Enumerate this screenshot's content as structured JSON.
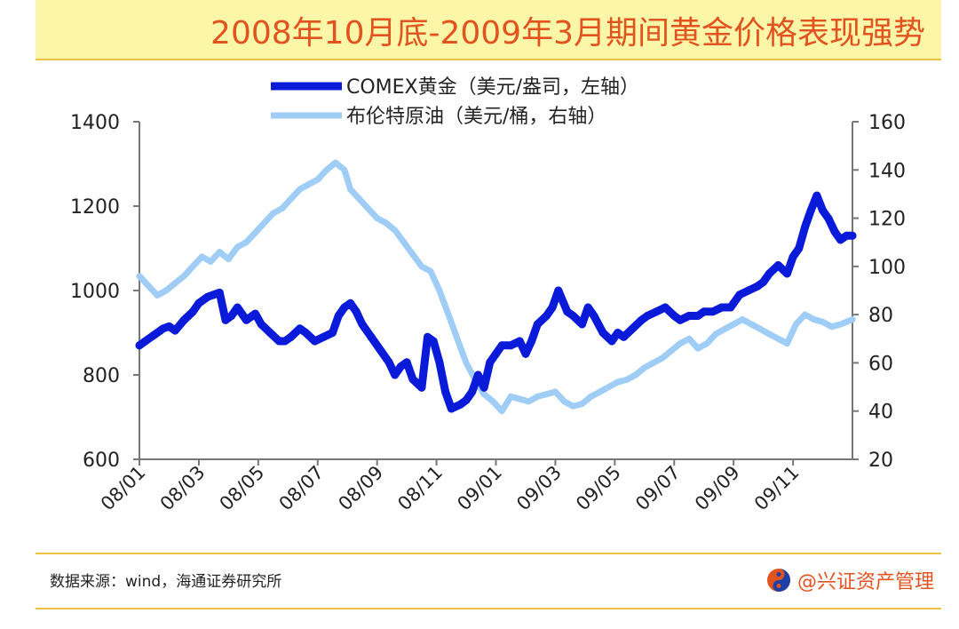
{
  "title": "2008年10月底-2009年3月期间黄金价格表现强势",
  "source": "数据来源：wind，海通证券研究所",
  "watermark": "@兴证资产管理",
  "colors": {
    "gold": "#0a1ad9",
    "oil": "#9fcdf6",
    "title": "#e2541f",
    "band": "#fbf6a8",
    "rule": "#f0c040"
  },
  "chart_data": {
    "type": "line",
    "legend": [
      "COMEX黄金（美元/盎司，左轴）",
      "布伦特原油（美元/桶，右轴）"
    ],
    "legend_position": "top-center",
    "x_tick_labels": [
      "08/01",
      "08/03",
      "08/05",
      "08/07",
      "08/09",
      "08/11",
      "09/01",
      "09/03",
      "09/05",
      "09/07",
      "09/09",
      "09/11"
    ],
    "x_range_months": [
      0,
      24
    ],
    "y_left": {
      "min": 600,
      "max": 1400,
      "ticks": [
        600,
        800,
        1000,
        1200,
        1400
      ]
    },
    "y_right": {
      "min": 20,
      "max": 160,
      "ticks": [
        20,
        40,
        60,
        80,
        100,
        120,
        140,
        160
      ]
    },
    "grid": false,
    "series": [
      {
        "name": "COMEX黄金（美元/盎司，左轴）",
        "axis": "left",
        "x": [
          0,
          0.2,
          0.5,
          0.8,
          1,
          1.2,
          1.5,
          1.8,
          2,
          2.3,
          2.5,
          2.7,
          2.9,
          3.1,
          3.3,
          3.6,
          3.9,
          4.1,
          4.4,
          4.7,
          4.9,
          5.1,
          5.4,
          5.6,
          5.9,
          6.2,
          6.5,
          6.7,
          6.9,
          7.1,
          7.3,
          7.5,
          7.8,
          8.1,
          8.4,
          8.6,
          8.8,
          9,
          9.2,
          9.5,
          9.7,
          9.9,
          10.1,
          10.3,
          10.5,
          10.8,
          11,
          11.2,
          11.4,
          11.6,
          11.8,
          12,
          12.2,
          12.5,
          12.8,
          13,
          13.2,
          13.4,
          13.7,
          13.9,
          14.1,
          14.4,
          14.6,
          14.9,
          15.1,
          15.3,
          15.6,
          15.9,
          16.1,
          16.3,
          16.6,
          16.9,
          17.1,
          17.4,
          17.7,
          18,
          18.2,
          18.5,
          18.8,
          19,
          19.3,
          19.6,
          19.9,
          20.2,
          20.5,
          20.8,
          21,
          21.2,
          21.5,
          21.8,
          22,
          22.2,
          22.4,
          22.6,
          22.8,
          23,
          23.2,
          23.4,
          23.6,
          23.8,
          24
        ],
        "values": [
          870,
          880,
          895,
          910,
          915,
          905,
          930,
          950,
          970,
          985,
          990,
          995,
          930,
          940,
          960,
          930,
          945,
          920,
          900,
          880,
          880,
          890,
          910,
          900,
          880,
          890,
          900,
          940,
          960,
          970,
          950,
          920,
          890,
          860,
          830,
          800,
          820,
          830,
          790,
          770,
          890,
          880,
          830,
          760,
          720,
          730,
          740,
          760,
          800,
          770,
          830,
          850,
          870,
          870,
          880,
          850,
          880,
          920,
          940,
          960,
          1000,
          950,
          940,
          920,
          960,
          940,
          900,
          880,
          900,
          890,
          910,
          930,
          940,
          950,
          960,
          940,
          930,
          940,
          940,
          950,
          950,
          960,
          960,
          990,
          1000,
          1010,
          1020,
          1040,
          1060,
          1040,
          1080,
          1100,
          1150,
          1190,
          1225,
          1190,
          1170,
          1140,
          1120,
          1130,
          1130
        ]
      },
      {
        "name": "布伦特原油（美元/桶，右轴）",
        "axis": "right",
        "x": [
          0,
          0.3,
          0.6,
          0.9,
          1.2,
          1.5,
          1.8,
          2.1,
          2.4,
          2.7,
          3,
          3.3,
          3.6,
          3.9,
          4.2,
          4.5,
          4.8,
          5.1,
          5.4,
          5.7,
          6,
          6.3,
          6.6,
          6.9,
          7.1,
          7.4,
          7.7,
          8,
          8.3,
          8.6,
          8.9,
          9.2,
          9.5,
          9.8,
          10.1,
          10.4,
          10.7,
          11,
          11.3,
          11.6,
          11.9,
          12.2,
          12.5,
          12.8,
          13.1,
          13.4,
          13.7,
          14,
          14.3,
          14.6,
          14.9,
          15.2,
          15.5,
          15.8,
          16.1,
          16.4,
          16.7,
          17,
          17.3,
          17.6,
          17.9,
          18.2,
          18.5,
          18.8,
          19.1,
          19.4,
          19.7,
          20,
          20.3,
          20.6,
          20.9,
          21.2,
          21.5,
          21.8,
          22.1,
          22.4,
          22.7,
          23,
          23.3,
          23.6,
          24
        ],
        "values": [
          96,
          92,
          88,
          90,
          93,
          96,
          100,
          104,
          102,
          106,
          103,
          108,
          110,
          114,
          118,
          122,
          124,
          128,
          132,
          134,
          136,
          140,
          143,
          140,
          132,
          128,
          124,
          120,
          118,
          115,
          110,
          105,
          100,
          98,
          90,
          80,
          70,
          60,
          53,
          47,
          44,
          40,
          46,
          45,
          44,
          46,
          47,
          48,
          44,
          42,
          43,
          46,
          48,
          50,
          52,
          53,
          55,
          58,
          60,
          62,
          65,
          68,
          70,
          66,
          68,
          72,
          74,
          76,
          78,
          76,
          74,
          72,
          70,
          68,
          76,
          80,
          78,
          77,
          75,
          76,
          78
        ]
      }
    ]
  }
}
